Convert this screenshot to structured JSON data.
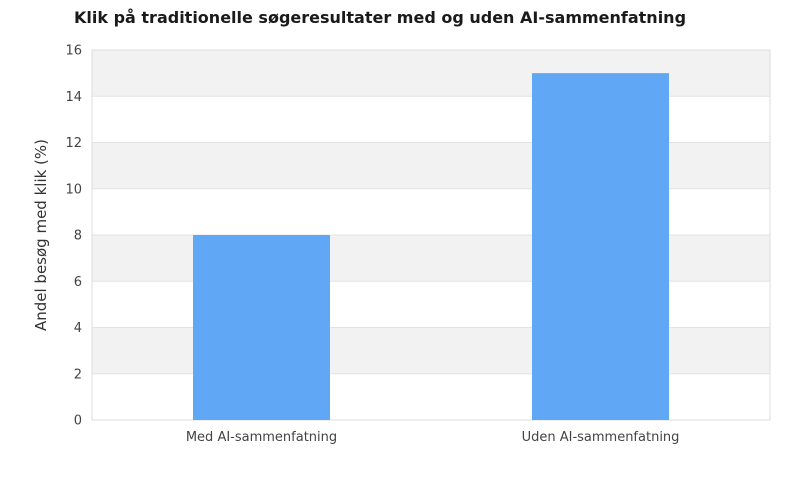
{
  "chart_data": {
    "type": "bar",
    "title": "Klik på traditionelle søgeresultater med og uden AI-sammenfatning",
    "xlabel": "",
    "ylabel": "Andel besøg med klik (%)",
    "categories": [
      "Med AI-sammenfatning",
      "Uden AI-sammenfatning"
    ],
    "values": [
      8,
      15
    ],
    "ylim": [
      0,
      16
    ],
    "yticks": [
      0,
      2,
      4,
      6,
      8,
      10,
      12,
      14,
      16
    ],
    "grid": true,
    "legend": "none",
    "colors": {
      "bar": "#60a8f5",
      "band": "#f2f2f2",
      "gridline": "#e3e3e3",
      "frame": "#dcdcdc"
    }
  }
}
